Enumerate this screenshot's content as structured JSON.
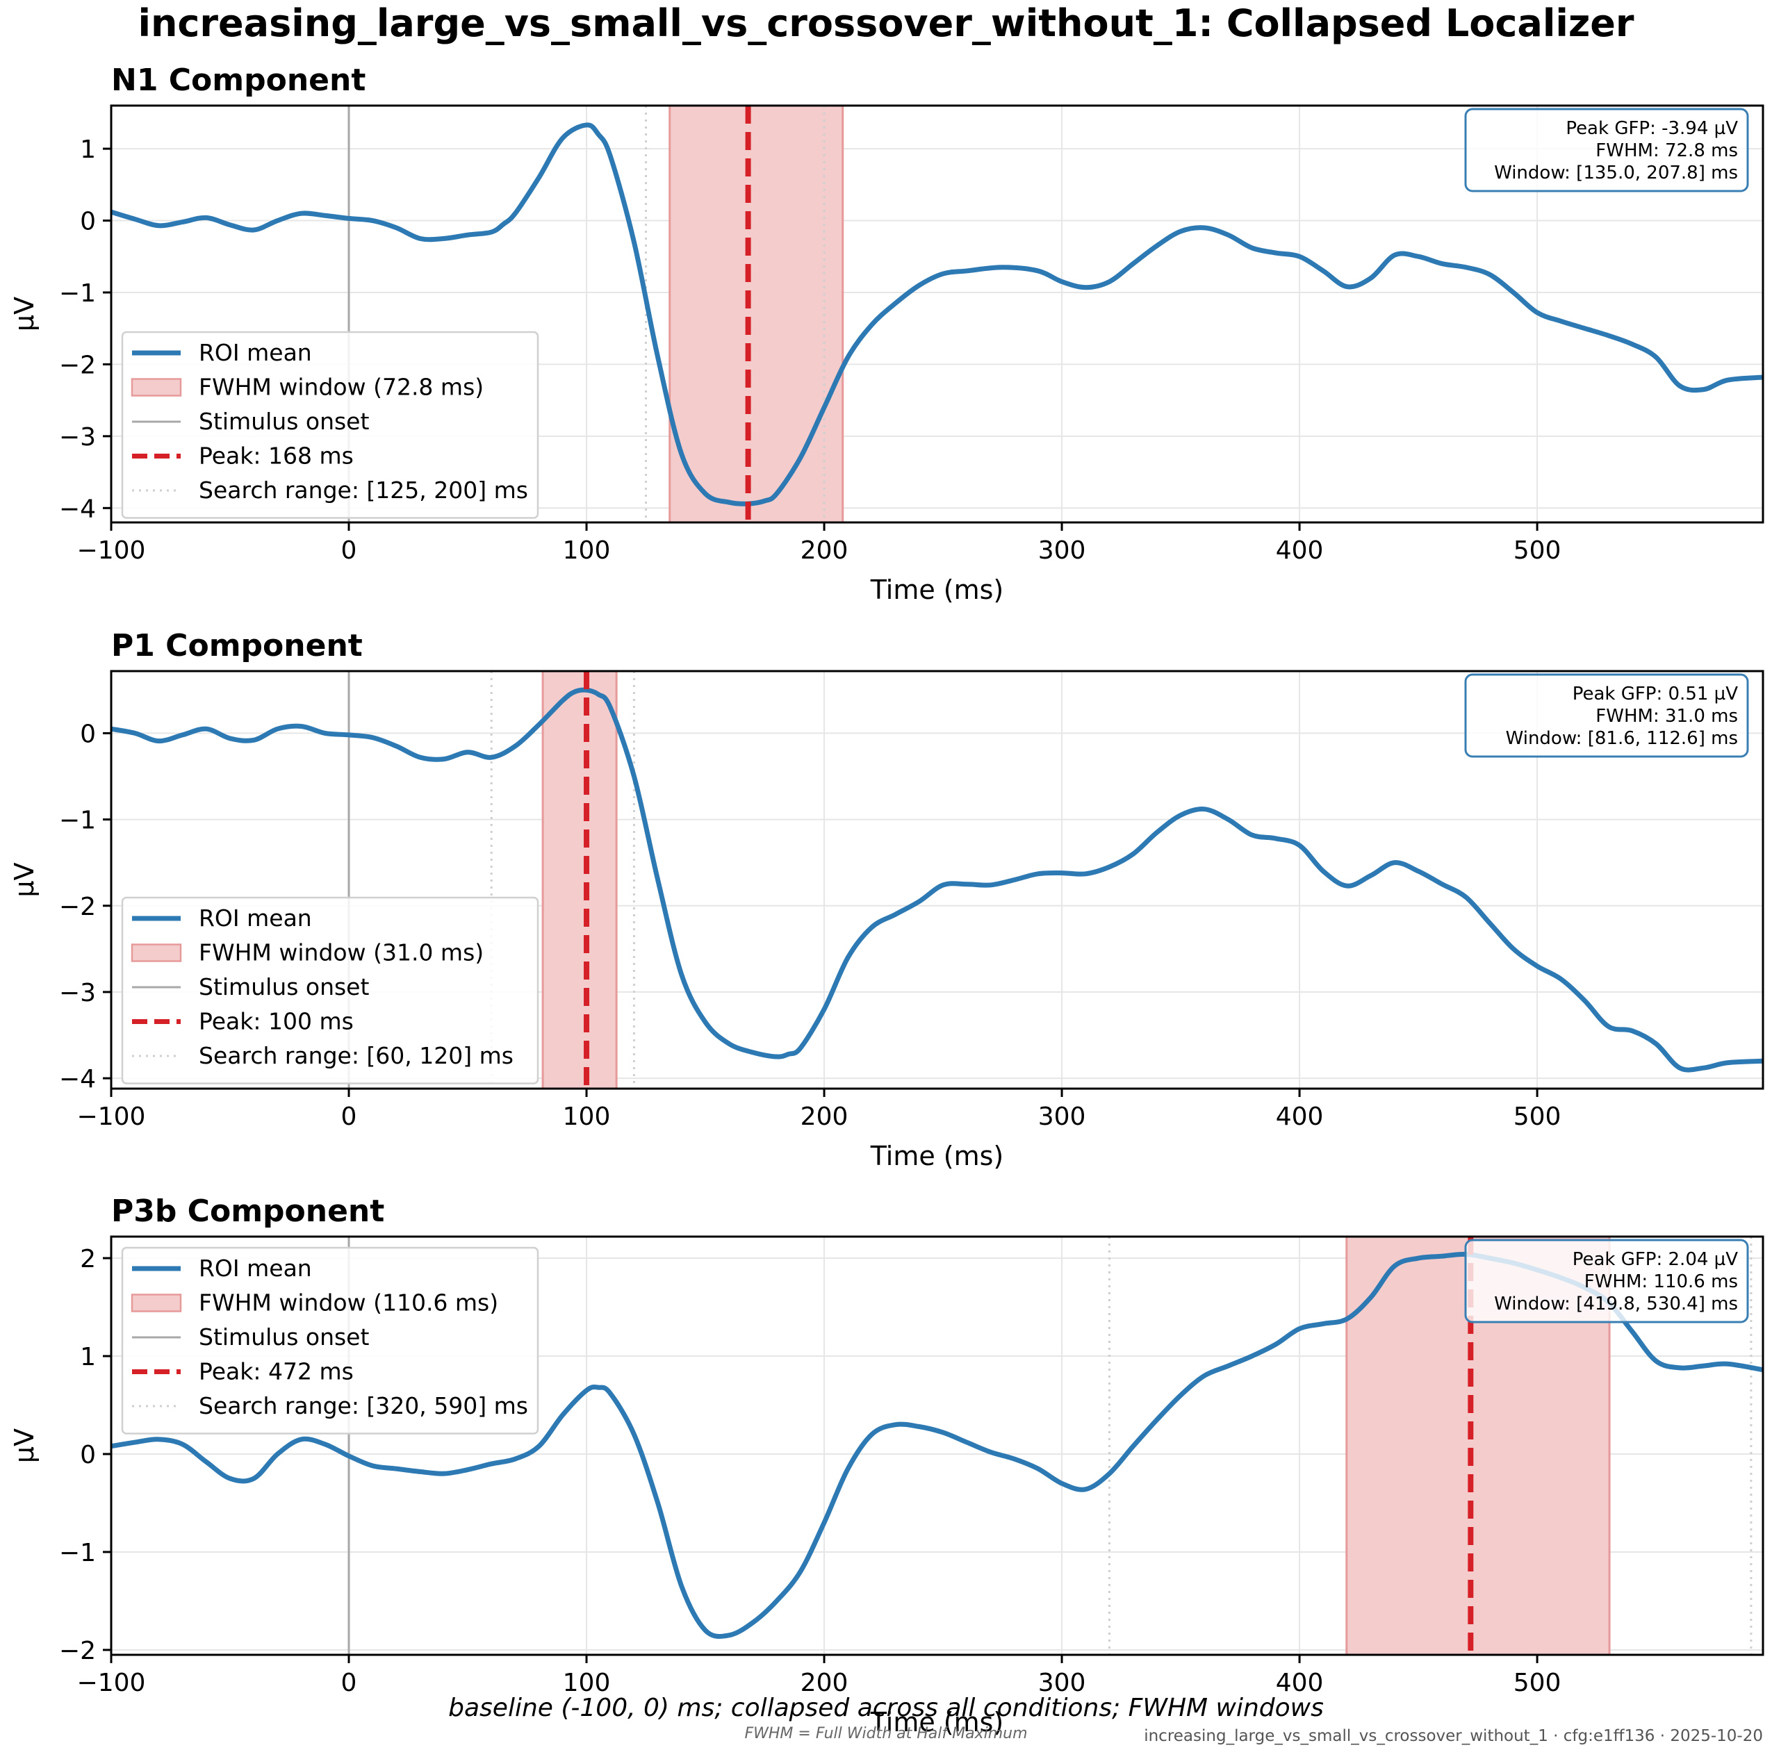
{
  "figure": {
    "title": "increasing_large_vs_small_vs_crossover_without_1: Collapsed Localizer",
    "footer_caption": "baseline (-100, 0) ms; collapsed across all conditions; FWHM windows",
    "footer_note": "FWHM = Full Width at Half Maximum",
    "footer_stamp": "increasing_large_vs_small_vs_crossover_without_1 · cfg:e1ff136 · 2025-10-20"
  },
  "colors": {
    "roi_line": "#2c79b4",
    "fwhm_fill": "#f4cccc",
    "fwhm_edge": "#e79a9a",
    "peak_line": "#d62027",
    "stimulus_line": "#a8a8a8",
    "search_line": "#cfcfcf",
    "grid": "#e6e6e6",
    "box_edge": "#3a7fb4"
  },
  "chart_data": [
    {
      "type": "line",
      "title": "N1 Component",
      "xlabel": "Time (ms)",
      "ylabel": "µV",
      "xlim": [
        -100,
        595
      ],
      "ylim": [
        -4.2,
        1.6
      ],
      "xticks": [
        -100,
        0,
        100,
        200,
        300,
        400,
        500
      ],
      "yticks": [
        1,
        0,
        -1,
        -2,
        -3,
        -4
      ],
      "grid": true,
      "legend_position": "lower-left",
      "series": [
        {
          "name": "ROI mean",
          "x": [
            -100,
            -90,
            -80,
            -70,
            -60,
            -50,
            -40,
            -30,
            -20,
            -10,
            0,
            10,
            20,
            30,
            40,
            50,
            60,
            65,
            70,
            80,
            90,
            100,
            105,
            110,
            120,
            130,
            140,
            150,
            160,
            168,
            175,
            180,
            190,
            200,
            210,
            220,
            230,
            240,
            250,
            260,
            275,
            290,
            300,
            310,
            320,
            330,
            340,
            350,
            360,
            370,
            380,
            390,
            400,
            410,
            420,
            430,
            440,
            450,
            460,
            470,
            480,
            490,
            500,
            510,
            520,
            530,
            540,
            550,
            560,
            570,
            580,
            595
          ],
          "values": [
            0.12,
            0.02,
            -0.07,
            -0.02,
            0.04,
            -0.06,
            -0.13,
            0.0,
            0.1,
            0.07,
            0.03,
            0.0,
            -0.1,
            -0.25,
            -0.25,
            -0.2,
            -0.16,
            -0.05,
            0.1,
            0.6,
            1.15,
            1.33,
            1.2,
            0.9,
            -0.3,
            -1.9,
            -3.25,
            -3.8,
            -3.92,
            -3.94,
            -3.9,
            -3.8,
            -3.3,
            -2.6,
            -1.9,
            -1.45,
            -1.15,
            -0.9,
            -0.74,
            -0.7,
            -0.65,
            -0.7,
            -0.85,
            -0.93,
            -0.85,
            -0.6,
            -0.35,
            -0.15,
            -0.1,
            -0.2,
            -0.38,
            -0.45,
            -0.5,
            -0.7,
            -0.92,
            -0.8,
            -0.48,
            -0.5,
            -0.6,
            -0.65,
            -0.75,
            -1.0,
            -1.28,
            -1.4,
            -1.5,
            -1.6,
            -1.72,
            -1.9,
            -2.3,
            -2.35,
            -2.22,
            -2.18
          ]
        }
      ],
      "stimulus_onset": 0,
      "search_range": [
        125,
        200
      ],
      "fwhm_window": [
        135.0,
        207.8
      ],
      "peak_ms": 168,
      "legend": [
        "ROI mean",
        "FWHM window (72.8 ms)",
        "Stimulus onset",
        "Peak: 168 ms",
        "Search range: [125, 200] ms"
      ],
      "info_box": [
        "Peak GFP: -3.94 µV",
        "FWHM: 72.8 ms",
        "Window: [135.0, 207.8] ms"
      ]
    },
    {
      "type": "line",
      "title": "P1 Component",
      "xlabel": "Time (ms)",
      "ylabel": "µV",
      "xlim": [
        -100,
        595
      ],
      "ylim": [
        -4.12,
        0.72
      ],
      "xticks": [
        -100,
        0,
        100,
        200,
        300,
        400,
        500
      ],
      "yticks": [
        0,
        -1,
        -2,
        -3,
        -4
      ],
      "grid": true,
      "legend_position": "lower-left",
      "series": [
        {
          "name": "ROI mean",
          "x": [
            -100,
            -90,
            -80,
            -70,
            -60,
            -50,
            -40,
            -30,
            -20,
            -10,
            0,
            10,
            20,
            30,
            40,
            50,
            60,
            70,
            80,
            90,
            95,
            100,
            105,
            110,
            120,
            130,
            140,
            150,
            160,
            170,
            180,
            185,
            190,
            200,
            210,
            220,
            230,
            240,
            250,
            260,
            270,
            280,
            290,
            300,
            310,
            320,
            330,
            340,
            350,
            360,
            370,
            380,
            390,
            400,
            410,
            420,
            430,
            440,
            450,
            460,
            470,
            480,
            490,
            500,
            510,
            520,
            530,
            540,
            550,
            560,
            570,
            580,
            595
          ],
          "values": [
            0.05,
            0.0,
            -0.09,
            -0.02,
            0.05,
            -0.06,
            -0.08,
            0.05,
            0.08,
            0.0,
            -0.02,
            -0.05,
            -0.15,
            -0.28,
            -0.3,
            -0.22,
            -0.28,
            -0.15,
            0.1,
            0.38,
            0.48,
            0.5,
            0.45,
            0.3,
            -0.5,
            -1.7,
            -2.8,
            -3.35,
            -3.6,
            -3.7,
            -3.75,
            -3.72,
            -3.65,
            -3.2,
            -2.6,
            -2.25,
            -2.1,
            -1.95,
            -1.76,
            -1.75,
            -1.76,
            -1.7,
            -1.63,
            -1.62,
            -1.63,
            -1.55,
            -1.4,
            -1.15,
            -0.95,
            -0.88,
            -1.0,
            -1.18,
            -1.22,
            -1.3,
            -1.6,
            -1.77,
            -1.65,
            -1.5,
            -1.6,
            -1.75,
            -1.9,
            -2.2,
            -2.5,
            -2.7,
            -2.85,
            -3.1,
            -3.4,
            -3.45,
            -3.6,
            -3.88,
            -3.88,
            -3.82,
            -3.8
          ]
        }
      ],
      "stimulus_onset": 0,
      "search_range": [
        60,
        120
      ],
      "fwhm_window": [
        81.6,
        112.6
      ],
      "peak_ms": 100,
      "legend": [
        "ROI mean",
        "FWHM window (31.0 ms)",
        "Stimulus onset",
        "Peak: 100 ms",
        "Search range: [60, 120] ms"
      ],
      "info_box": [
        "Peak GFP: 0.51 µV",
        "FWHM: 31.0 ms",
        "Window: [81.6, 112.6] ms"
      ]
    },
    {
      "type": "line",
      "title": "P3b Component",
      "xlabel": "Time (ms)",
      "ylabel": "µV",
      "xlim": [
        -100,
        595
      ],
      "ylim": [
        -2.05,
        2.22
      ],
      "xticks": [
        -100,
        0,
        100,
        200,
        300,
        400,
        500
      ],
      "yticks": [
        2,
        1,
        0,
        -1,
        -2
      ],
      "grid": true,
      "legend_position": "upper-left",
      "series": [
        {
          "name": "ROI mean",
          "x": [
            -100,
            -90,
            -80,
            -70,
            -60,
            -50,
            -40,
            -30,
            -20,
            -10,
            0,
            10,
            20,
            30,
            40,
            50,
            60,
            70,
            80,
            90,
            100,
            105,
            110,
            120,
            130,
            140,
            150,
            160,
            170,
            180,
            190,
            200,
            210,
            220,
            230,
            240,
            250,
            260,
            270,
            280,
            290,
            300,
            310,
            320,
            330,
            340,
            350,
            360,
            370,
            380,
            390,
            400,
            410,
            420,
            430,
            440,
            450,
            460,
            470,
            480,
            490,
            500,
            510,
            520,
            530,
            540,
            550,
            560,
            570,
            580,
            595
          ],
          "values": [
            0.08,
            0.12,
            0.15,
            0.1,
            -0.08,
            -0.25,
            -0.25,
            0.0,
            0.15,
            0.1,
            -0.02,
            -0.12,
            -0.15,
            -0.18,
            -0.2,
            -0.16,
            -0.1,
            -0.05,
            0.08,
            0.4,
            0.65,
            0.68,
            0.62,
            0.2,
            -0.5,
            -1.35,
            -1.8,
            -1.85,
            -1.72,
            -1.5,
            -1.2,
            -0.7,
            -0.15,
            0.2,
            0.3,
            0.28,
            0.22,
            0.12,
            0.02,
            -0.05,
            -0.15,
            -0.3,
            -0.36,
            -0.2,
            0.08,
            0.35,
            0.6,
            0.8,
            0.9,
            1.0,
            1.12,
            1.28,
            1.33,
            1.38,
            1.6,
            1.92,
            2.0,
            2.02,
            2.04,
            2.0,
            1.95,
            1.88,
            1.8,
            1.7,
            1.55,
            1.25,
            0.95,
            0.88,
            0.9,
            0.92,
            0.86
          ]
        }
      ],
      "stimulus_onset": 0,
      "search_range": [
        320,
        590
      ],
      "fwhm_window": [
        419.8,
        530.4
      ],
      "peak_ms": 472,
      "legend": [
        "ROI mean",
        "FWHM window (110.6 ms)",
        "Stimulus onset",
        "Peak: 472 ms",
        "Search range: [320, 590] ms"
      ],
      "info_box": [
        "Peak GFP: 2.04 µV",
        "FWHM: 110.6 ms",
        "Window: [419.8, 530.4] ms"
      ]
    }
  ]
}
